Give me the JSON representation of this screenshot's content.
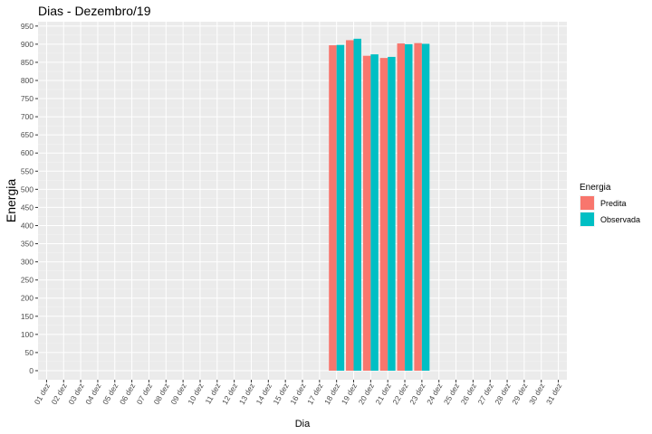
{
  "chart_data": {
    "type": "bar",
    "title": "Dias - Dezembro/19",
    "xlabel": "Dia",
    "ylabel": "Energia",
    "ylim": [
      -25,
      962
    ],
    "yticks": [
      0,
      50,
      100,
      150,
      200,
      250,
      300,
      350,
      400,
      450,
      500,
      550,
      600,
      650,
      700,
      750,
      800,
      850,
      900,
      950
    ],
    "categories": [
      "01 dez",
      "02 dez",
      "03 dez",
      "04 dez",
      "05 dez",
      "06 dez",
      "07 dez",
      "08 dez",
      "09 dez",
      "10 dez",
      "11 dez",
      "12 dez",
      "13 dez",
      "14 dez",
      "15 dez",
      "16 dez",
      "17 dez",
      "18 dez",
      "19 dez",
      "20 dez",
      "21 dez",
      "22 dez",
      "23 dez",
      "24 dez",
      "25 dez",
      "26 dez",
      "27 dez",
      "28 dez",
      "29 dez",
      "30 dez",
      "31 dez"
    ],
    "grid": true,
    "legend": {
      "title": "Energia",
      "placement": "right"
    },
    "series": [
      {
        "name": "Predita",
        "color": "#f8766d",
        "values": [
          null,
          null,
          null,
          null,
          null,
          null,
          null,
          null,
          null,
          null,
          null,
          null,
          null,
          null,
          null,
          null,
          null,
          897,
          911,
          868,
          862,
          902,
          903,
          null,
          null,
          null,
          null,
          null,
          null,
          null,
          null
        ]
      },
      {
        "name": "Observada",
        "color": "#00bfc4",
        "values": [
          null,
          null,
          null,
          null,
          null,
          null,
          null,
          null,
          null,
          null,
          null,
          null,
          null,
          null,
          null,
          null,
          null,
          898,
          915,
          872,
          865,
          900,
          901,
          null,
          null,
          null,
          null,
          null,
          null,
          null,
          null
        ]
      }
    ]
  }
}
